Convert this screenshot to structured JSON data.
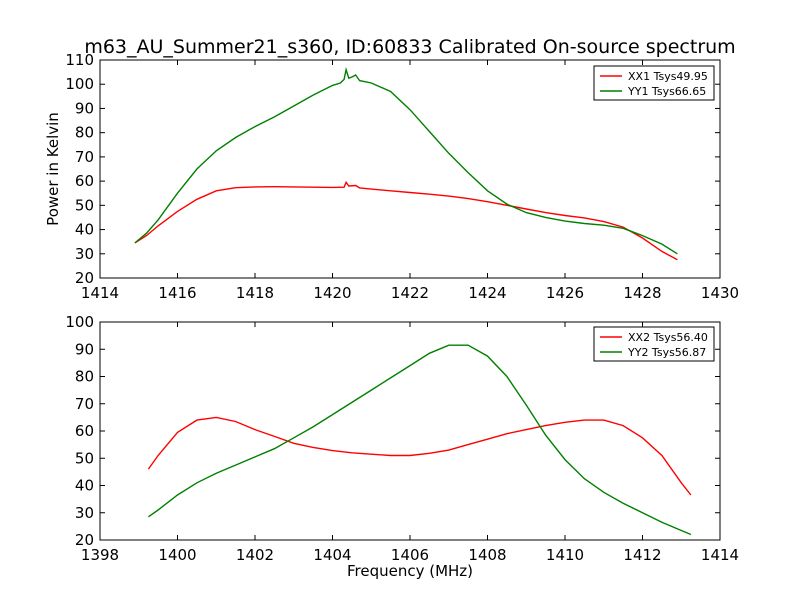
{
  "title": "m63_AU_Summer21_s360, ID:60833 Calibrated On-source spectrum",
  "chart_data": [
    {
      "type": "line",
      "xlabel": "",
      "ylabel": "Power in Kelvin",
      "xlim": [
        1414,
        1430
      ],
      "ylim": [
        20,
        110
      ],
      "xticks": [
        "1414",
        "1416",
        "1418",
        "1420",
        "1422",
        "1424",
        "1426",
        "1428",
        "1430"
      ],
      "yticks": [
        "20",
        "30",
        "40",
        "50",
        "60",
        "70",
        "80",
        "90",
        "100",
        "110"
      ],
      "grid": false,
      "legend_position": "top-right",
      "series": [
        {
          "name": "XX1 Tsys49.95",
          "color": "#ff0000",
          "points": [
            [
              1414.9,
              34.5
            ],
            [
              1415.2,
              37.5
            ],
            [
              1415.5,
              41.5
            ],
            [
              1416.0,
              47.5
            ],
            [
              1416.5,
              52.5
            ],
            [
              1417.0,
              56.0
            ],
            [
              1417.5,
              57.3
            ],
            [
              1418.0,
              57.6
            ],
            [
              1418.5,
              57.7
            ],
            [
              1419.0,
              57.6
            ],
            [
              1419.5,
              57.5
            ],
            [
              1420.0,
              57.4
            ],
            [
              1420.3,
              57.5
            ],
            [
              1420.35,
              59.5
            ],
            [
              1420.42,
              58.0
            ],
            [
              1420.6,
              58.2
            ],
            [
              1420.7,
              57.2
            ],
            [
              1421.0,
              56.7
            ],
            [
              1421.5,
              56.0
            ],
            [
              1422.0,
              55.3
            ],
            [
              1422.5,
              54.6
            ],
            [
              1423.0,
              53.8
            ],
            [
              1423.5,
              52.8
            ],
            [
              1424.0,
              51.5
            ],
            [
              1424.5,
              50.0
            ],
            [
              1425.0,
              48.5
            ],
            [
              1425.5,
              47.0
            ],
            [
              1426.0,
              45.8
            ],
            [
              1426.5,
              44.8
            ],
            [
              1427.0,
              43.3
            ],
            [
              1427.5,
              41.0
            ],
            [
              1428.0,
              36.5
            ],
            [
              1428.5,
              31.0
            ],
            [
              1428.9,
              27.5
            ]
          ]
        },
        {
          "name": "YY1 Tsys66.65",
          "color": "#008000",
          "points": [
            [
              1414.9,
              34.5
            ],
            [
              1415.2,
              38.5
            ],
            [
              1415.5,
              44.0
            ],
            [
              1416.0,
              55.0
            ],
            [
              1416.5,
              65.0
            ],
            [
              1417.0,
              72.5
            ],
            [
              1417.5,
              78.0
            ],
            [
              1418.0,
              82.5
            ],
            [
              1418.5,
              86.5
            ],
            [
              1419.0,
              91.0
            ],
            [
              1419.5,
              95.5
            ],
            [
              1420.0,
              99.5
            ],
            [
              1420.2,
              100.5
            ],
            [
              1420.3,
              102.0
            ],
            [
              1420.35,
              106.0
            ],
            [
              1420.42,
              102.5
            ],
            [
              1420.5,
              103.0
            ],
            [
              1420.6,
              103.8
            ],
            [
              1420.7,
              101.5
            ],
            [
              1421.0,
              100.5
            ],
            [
              1421.5,
              97.0
            ],
            [
              1422.0,
              89.5
            ],
            [
              1422.5,
              80.5
            ],
            [
              1423.0,
              71.5
            ],
            [
              1423.5,
              63.5
            ],
            [
              1424.0,
              56.0
            ],
            [
              1424.5,
              50.5
            ],
            [
              1425.0,
              47.0
            ],
            [
              1425.5,
              45.0
            ],
            [
              1426.0,
              43.5
            ],
            [
              1426.5,
              42.5
            ],
            [
              1427.0,
              41.8
            ],
            [
              1427.5,
              40.5
            ],
            [
              1428.0,
              37.5
            ],
            [
              1428.5,
              34.0
            ],
            [
              1428.9,
              30.0
            ]
          ]
        }
      ]
    },
    {
      "type": "line",
      "xlabel": "Frequency (MHz)",
      "ylabel": "",
      "xlim": [
        1398,
        1414
      ],
      "ylim": [
        20,
        100
      ],
      "xticks": [
        "1398",
        "1400",
        "1402",
        "1404",
        "1406",
        "1408",
        "1410",
        "1412",
        "1414"
      ],
      "yticks": [
        "20",
        "30",
        "40",
        "50",
        "60",
        "70",
        "80",
        "90",
        "100"
      ],
      "grid": false,
      "legend_position": "top-right",
      "series": [
        {
          "name": "XX2 Tsys56.40",
          "color": "#ff0000",
          "points": [
            [
              1399.25,
              46.0
            ],
            [
              1399.5,
              51.0
            ],
            [
              1400.0,
              59.5
            ],
            [
              1400.5,
              64.0
            ],
            [
              1401.0,
              65.0
            ],
            [
              1401.5,
              63.5
            ],
            [
              1402.0,
              60.5
            ],
            [
              1402.5,
              58.0
            ],
            [
              1403.0,
              55.5
            ],
            [
              1403.5,
              54.0
            ],
            [
              1404.0,
              52.8
            ],
            [
              1404.5,
              52.0
            ],
            [
              1405.0,
              51.5
            ],
            [
              1405.5,
              51.0
            ],
            [
              1406.0,
              51.0
            ],
            [
              1406.5,
              51.8
            ],
            [
              1407.0,
              53.0
            ],
            [
              1407.5,
              55.0
            ],
            [
              1408.0,
              57.0
            ],
            [
              1408.5,
              59.0
            ],
            [
              1409.0,
              60.5
            ],
            [
              1409.5,
              62.0
            ],
            [
              1410.0,
              63.2
            ],
            [
              1410.5,
              64.0
            ],
            [
              1411.0,
              64.0
            ],
            [
              1411.5,
              62.0
            ],
            [
              1412.0,
              57.5
            ],
            [
              1412.5,
              51.0
            ],
            [
              1413.0,
              41.0
            ],
            [
              1413.25,
              36.5
            ]
          ]
        },
        {
          "name": "YY2 Tsys56.87",
          "color": "#008000",
          "points": [
            [
              1399.25,
              28.5
            ],
            [
              1399.5,
              31.0
            ],
            [
              1400.0,
              36.5
            ],
            [
              1400.5,
              41.0
            ],
            [
              1401.0,
              44.5
            ],
            [
              1401.5,
              47.5
            ],
            [
              1402.0,
              50.5
            ],
            [
              1402.5,
              53.5
            ],
            [
              1403.0,
              57.5
            ],
            [
              1403.5,
              61.5
            ],
            [
              1404.0,
              66.0
            ],
            [
              1404.5,
              70.5
            ],
            [
              1405.0,
              75.0
            ],
            [
              1405.5,
              79.5
            ],
            [
              1406.0,
              84.0
            ],
            [
              1406.5,
              88.5
            ],
            [
              1407.0,
              91.5
            ],
            [
              1407.5,
              91.5
            ],
            [
              1408.0,
              87.5
            ],
            [
              1408.5,
              80.0
            ],
            [
              1409.0,
              69.5
            ],
            [
              1409.5,
              58.5
            ],
            [
              1410.0,
              49.5
            ],
            [
              1410.5,
              42.5
            ],
            [
              1411.0,
              37.5
            ],
            [
              1411.5,
              33.5
            ],
            [
              1412.0,
              30.0
            ],
            [
              1412.5,
              26.5
            ],
            [
              1413.0,
              23.5
            ],
            [
              1413.25,
              22.0
            ]
          ]
        }
      ]
    }
  ]
}
